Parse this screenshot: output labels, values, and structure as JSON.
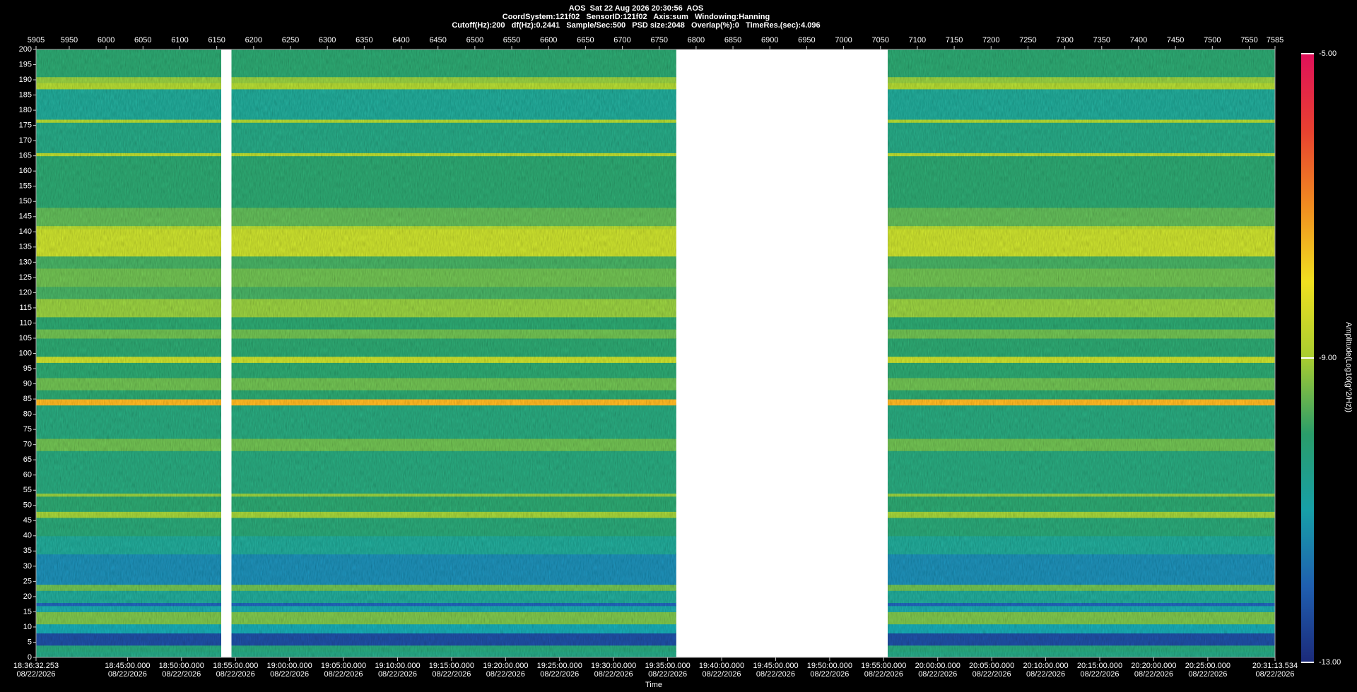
{
  "chart_data": {
    "type": "spectrogram",
    "title": "AOS  Sat 22 Aug 2026 20:30:56  AOS",
    "subtitle": [
      "CoordSystem:121f02   SensorID:121f02   Axis:sum   Windowing:Hanning",
      "Cutoff(Hz):200   df(Hz):0.2441   Sample/Sec:500   PSD size:2048   Overlap(%):0   TimeRes.(sec):4.096"
    ],
    "xlabel": "Time",
    "xlim": [
      5905,
      7585
    ],
    "x2ticks": [
      5905,
      5950,
      6000,
      6050,
      6100,
      6150,
      6200,
      6250,
      6300,
      6350,
      6400,
      6450,
      6500,
      6550,
      6600,
      6650,
      6700,
      6750,
      6800,
      6850,
      6900,
      6950,
      7000,
      7050,
      7100,
      7150,
      7200,
      7250,
      7300,
      7350,
      7400,
      7450,
      7500,
      7550,
      7585
    ],
    "xticks": [
      {
        "value": 5905,
        "label": "18:36:32.253",
        "date": "08/22/2026"
      },
      {
        "value": 6028.96,
        "label": "18:45:00.000",
        "date": "08/22/2026"
      },
      {
        "value": 6102.2,
        "label": "18:50:00.000",
        "date": "08/22/2026"
      },
      {
        "value": 6175.45,
        "label": "18:55:00.000",
        "date": "08/22/2026"
      },
      {
        "value": 6248.69,
        "label": "19:00:00.000",
        "date": "08/22/2026"
      },
      {
        "value": 6321.93,
        "label": "19:05:00.000",
        "date": "08/22/2026"
      },
      {
        "value": 6395.17,
        "label": "19:10:00.000",
        "date": "08/22/2026"
      },
      {
        "value": 6468.42,
        "label": "19:15:00.000",
        "date": "08/22/2026"
      },
      {
        "value": 6541.66,
        "label": "19:20:00.000",
        "date": "08/22/2026"
      },
      {
        "value": 6614.9,
        "label": "19:25:00.000",
        "date": "08/22/2026"
      },
      {
        "value": 6688.14,
        "label": "19:30:00.000",
        "date": "08/22/2026"
      },
      {
        "value": 6761.39,
        "label": "19:35:00.000",
        "date": "08/22/2026"
      },
      {
        "value": 6834.63,
        "label": "19:40:00.000",
        "date": "08/22/2026"
      },
      {
        "value": 6907.87,
        "label": "19:45:00.000",
        "date": "08/22/2026"
      },
      {
        "value": 6981.11,
        "label": "19:50:00.000",
        "date": "08/22/2026"
      },
      {
        "value": 7054.36,
        "label": "19:55:00.000",
        "date": "08/22/2026"
      },
      {
        "value": 7127.6,
        "label": "20:00:00.000",
        "date": "08/22/2026"
      },
      {
        "value": 7200.84,
        "label": "20:05:00.000",
        "date": "08/22/2026"
      },
      {
        "value": 7274.08,
        "label": "20:10:00.000",
        "date": "08/22/2026"
      },
      {
        "value": 7347.33,
        "label": "20:15:00.000",
        "date": "08/22/2026"
      },
      {
        "value": 7420.57,
        "label": "20:20:00.000",
        "date": "08/22/2026"
      },
      {
        "value": 7493.81,
        "label": "20:25:00.000",
        "date": "08/22/2026"
      },
      {
        "value": 7585,
        "label": "20:31:13.534",
        "date": "08/22/2026"
      }
    ],
    "ylim": [
      0,
      200
    ],
    "yticks": [
      0,
      5,
      10,
      15,
      20,
      25,
      30,
      35,
      40,
      45,
      50,
      55,
      60,
      65,
      70,
      75,
      80,
      85,
      90,
      95,
      100,
      105,
      110,
      115,
      120,
      125,
      130,
      135,
      140,
      145,
      150,
      155,
      160,
      165,
      170,
      175,
      180,
      185,
      190,
      195,
      200
    ],
    "segments": [
      [
        5905,
        6156
      ],
      [
        6170,
        6773
      ],
      [
        7060,
        7585
      ]
    ],
    "bands": [
      {
        "from": 0,
        "to": 2,
        "value": -10.3
      },
      {
        "from": 2,
        "to": 4,
        "value": -10.2
      },
      {
        "from": 4,
        "to": 8,
        "value": -12.4
      },
      {
        "from": 8,
        "to": 11,
        "value": -11
      },
      {
        "from": 11,
        "to": 15,
        "value": -9.4
      },
      {
        "from": 15,
        "to": 17,
        "value": -10.9
      },
      {
        "from": 17,
        "to": 18,
        "value": -12
      },
      {
        "from": 18,
        "to": 22,
        "value": -10.6
      },
      {
        "from": 22,
        "to": 24,
        "value": -9.5
      },
      {
        "from": 24,
        "to": 34,
        "value": -11.4
      },
      {
        "from": 34,
        "to": 40,
        "value": -10.6
      },
      {
        "from": 40,
        "to": 46,
        "value": -10.1
      },
      {
        "from": 46,
        "to": 48,
        "value": -9.1
      },
      {
        "from": 48,
        "to": 53,
        "value": -10
      },
      {
        "from": 53,
        "to": 54,
        "value": -9.2
      },
      {
        "from": 54,
        "to": 68,
        "value": -10.2
      },
      {
        "from": 68,
        "to": 72,
        "value": -9.5
      },
      {
        "from": 72,
        "to": 83,
        "value": -10.2
      },
      {
        "from": 83,
        "to": 85,
        "value": -7.4
      },
      {
        "from": 85,
        "to": 88,
        "value": -10
      },
      {
        "from": 88,
        "to": 92,
        "value": -9.5
      },
      {
        "from": 92,
        "to": 97,
        "value": -10
      },
      {
        "from": 97,
        "to": 99,
        "value": -8.7
      },
      {
        "from": 99,
        "to": 105,
        "value": -10
      },
      {
        "from": 105,
        "to": 108,
        "value": -9.5
      },
      {
        "from": 108,
        "to": 112,
        "value": -10
      },
      {
        "from": 112,
        "to": 118,
        "value": -9.2
      },
      {
        "from": 118,
        "to": 122,
        "value": -9.8
      },
      {
        "from": 122,
        "to": 128,
        "value": -9.5
      },
      {
        "from": 128,
        "to": 132,
        "value": -9.8
      },
      {
        "from": 132,
        "to": 141,
        "value": -8.7
      },
      {
        "from": 141,
        "to": 142,
        "value": -8.9
      },
      {
        "from": 142,
        "to": 148,
        "value": -9.6
      },
      {
        "from": 148,
        "to": 165,
        "value": -10
      },
      {
        "from": 165,
        "to": 166,
        "value": -8.9
      },
      {
        "from": 166,
        "to": 176,
        "value": -10.3
      },
      {
        "from": 176,
        "to": 177,
        "value": -9
      },
      {
        "from": 177,
        "to": 187,
        "value": -10.6
      },
      {
        "from": 187,
        "to": 189,
        "value": -9
      },
      {
        "from": 189,
        "to": 191,
        "value": -9.2
      },
      {
        "from": 191,
        "to": 200,
        "value": -10
      }
    ],
    "colorbar": {
      "label": "Amplitude(Log10(g^2/Hz))",
      "clim": [
        -13,
        -5
      ],
      "ticks": [
        {
          "value": -5,
          "label": "-5.00"
        },
        {
          "value": -9,
          "label": "-9.00"
        },
        {
          "value": -13,
          "label": "-13.00"
        }
      ],
      "colormap": [
        "#1b2a7a",
        "#1f5fb0",
        "#17a0a8",
        "#2a9d6a",
        "#a8cc30",
        "#f0e020",
        "#f08c20",
        "#e84030",
        "#e0105a"
      ]
    }
  }
}
